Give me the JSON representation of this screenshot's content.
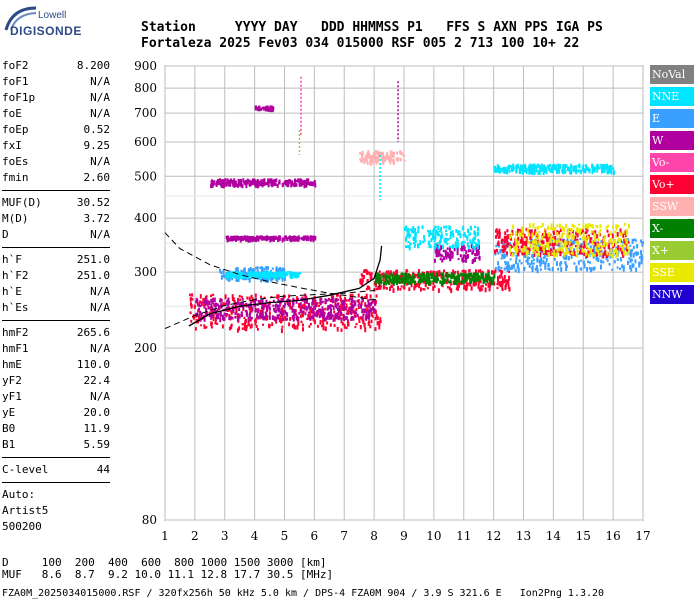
{
  "logo": {
    "brand": "Lowell",
    "name": "DIGISONDE"
  },
  "header": {
    "line1": "Station     YYYY DAY   DDD HHMMSS P1   FFS S AXN PPS IGA PS",
    "line2": "Fortaleza 2025 Fev03 034 015000 RSF 005 2 713 100 10+ 22"
  },
  "params": {
    "group1": [
      {
        "label": "foF2",
        "value": "8.200"
      },
      {
        "label": "foF1",
        "value": "N/A"
      },
      {
        "label": "foF1p",
        "value": "N/A"
      },
      {
        "label": "foE",
        "value": "N/A"
      },
      {
        "label": "foEp",
        "value": "0.52"
      },
      {
        "label": "fxI",
        "value": "9.25"
      },
      {
        "label": "foEs",
        "value": "N/A"
      },
      {
        "label": "fmin",
        "value": "2.60"
      }
    ],
    "group2": [
      {
        "label": "MUF(D)",
        "value": "30.52"
      },
      {
        "label": "M(D)",
        "value": "3.72"
      },
      {
        "label": "D",
        "value": "N/A"
      }
    ],
    "group3": [
      {
        "label": "h`F",
        "value": "251.0"
      },
      {
        "label": "h`F2",
        "value": "251.0"
      },
      {
        "label": "h`E",
        "value": "N/A"
      },
      {
        "label": "h`Es",
        "value": "N/A"
      }
    ],
    "group4": [
      {
        "label": "hmF2",
        "value": "265.6"
      },
      {
        "label": "hmF1",
        "value": "N/A"
      },
      {
        "label": "hmE",
        "value": "110.0"
      },
      {
        "label": "yF2",
        "value": "22.4"
      },
      {
        "label": "yF1",
        "value": "N/A"
      },
      {
        "label": "yE",
        "value": "20.0"
      },
      {
        "label": "B0",
        "value": "11.9"
      },
      {
        "label": "B1",
        "value": "5.59"
      }
    ],
    "clevel": {
      "label": "C-level",
      "value": "44"
    },
    "auto": [
      "Auto:",
      "Artist5",
      "500200"
    ]
  },
  "legend": [
    {
      "label": "NoVal",
      "color": "#808080"
    },
    {
      "label": "NNE",
      "color": "#00e5ff"
    },
    {
      "label": "E",
      "color": "#3aa0ff"
    },
    {
      "label": "W",
      "color": "#b000a0"
    },
    {
      "label": "Vo-",
      "color": "#ff44aa"
    },
    {
      "label": "Vo+",
      "color": "#ff0033"
    },
    {
      "label": "SSW",
      "color": "#ffb0b0"
    },
    {
      "label": "X-",
      "color": "#008000"
    },
    {
      "label": "X+",
      "color": "#99cc33"
    },
    {
      "label": "SSE",
      "color": "#e8e800"
    },
    {
      "label": "NNW",
      "color": "#2000d0"
    }
  ],
  "footer": {
    "line1": "D     100  200  400  600  800 1000 1500 3000 [km]",
    "line2": "MUF   8.6  8.7  9.2 10.0 11.1 12.8 17.7 30.5 [MHz]",
    "line3": "FZA0M_2025034015000.RSF / 320fx256h 50 kHz 5.0 km / DPS-4 FZA0M 904 / 3.9 S 321.6 E   Ion2Png 1.3.20"
  },
  "chart_data": {
    "type": "scatter",
    "title": "",
    "xlabel": "",
    "ylabel": "",
    "xlim": [
      1,
      17
    ],
    "ylim": [
      80,
      900
    ],
    "x_ticks": [
      "1",
      "2",
      "3",
      "4",
      "5",
      "6",
      "7",
      "8",
      "9",
      "10",
      "11",
      "12",
      "13",
      "14",
      "15",
      "16",
      "17"
    ],
    "y_ticks": [
      "80",
      "200",
      "300",
      "400",
      "500",
      "600",
      "700",
      "800",
      "900"
    ],
    "y_tick_values": [
      80,
      200,
      300,
      400,
      500,
      600,
      700,
      800,
      900
    ],
    "grid": true,
    "y_scale": "log",
    "trace_F2": [
      [
        1.8,
        225
      ],
      [
        2.5,
        240
      ],
      [
        3.5,
        250
      ],
      [
        4.5,
        255
      ],
      [
        5.5,
        258
      ],
      [
        6.5,
        265
      ],
      [
        7.5,
        275
      ],
      [
        8.0,
        290
      ],
      [
        8.2,
        320
      ],
      [
        8.25,
        345
      ]
    ],
    "profile_dashed": [
      [
        1,
        370
      ],
      [
        1.5,
        340
      ],
      [
        2.5,
        312
      ],
      [
        3.5,
        296
      ],
      [
        4.5,
        285
      ],
      [
        5.5,
        276
      ],
      [
        6.5,
        268
      ],
      [
        7.5,
        262
      ],
      [
        8.2,
        258
      ]
    ],
    "profile_dashed_lower": [
      [
        1,
        222
      ],
      [
        2,
        238
      ],
      [
        3,
        251
      ],
      [
        4,
        259
      ],
      [
        5,
        264
      ],
      [
        6,
        266
      ],
      [
        7,
        268
      ],
      [
        8,
        272
      ],
      [
        8.2,
        280
      ]
    ],
    "echo_clusters": [
      {
        "series": "Vo+",
        "x": [
          1.8,
          8.2
        ],
        "h": [
          222,
          268
        ]
      },
      {
        "series": "W",
        "x": [
          2.0,
          8.0
        ],
        "h": [
          235,
          262
        ]
      },
      {
        "series": "E",
        "x": [
          2.8,
          5.0
        ],
        "h": [
          290,
          310
        ]
      },
      {
        "series": "NNE",
        "x": [
          3.0,
          5.5
        ],
        "h": [
          295,
          302
        ]
      },
      {
        "series": "Vo+",
        "x": [
          7.5,
          12.5
        ],
        "h": [
          275,
          305
        ]
      },
      {
        "series": "X-",
        "x": [
          8.0,
          12.0
        ],
        "h": [
          285,
          300
        ]
      },
      {
        "series": "W",
        "x": [
          10.0,
          11.5
        ],
        "h": [
          320,
          350
        ]
      },
      {
        "series": "E",
        "x": [
          12.0,
          17.0
        ],
        "h": [
          305,
          360
        ]
      },
      {
        "series": "Vo+",
        "x": [
          12.0,
          16.5
        ],
        "h": [
          330,
          380
        ]
      },
      {
        "series": "SSE",
        "x": [
          12.5,
          16.5
        ],
        "h": [
          330,
          390
        ]
      },
      {
        "series": "NNE",
        "x": [
          9.0,
          11.5
        ],
        "h": [
          345,
          385
        ]
      },
      {
        "series": "W",
        "x": [
          3.0,
          6.0
        ],
        "h": [
          360,
          365
        ]
      },
      {
        "series": "W",
        "x": [
          2.5,
          6.0
        ],
        "h": [
          480,
          495
        ]
      },
      {
        "series": "SSW",
        "x": [
          7.5,
          9.0
        ],
        "h": [
          540,
          575
        ]
      },
      {
        "series": "NNE",
        "x": [
          12.0,
          16.0
        ],
        "h": [
          515,
          535
        ]
      },
      {
        "series": "W",
        "x": [
          4.0,
          4.6
        ],
        "h": [
          718,
          730
        ]
      }
    ]
  }
}
